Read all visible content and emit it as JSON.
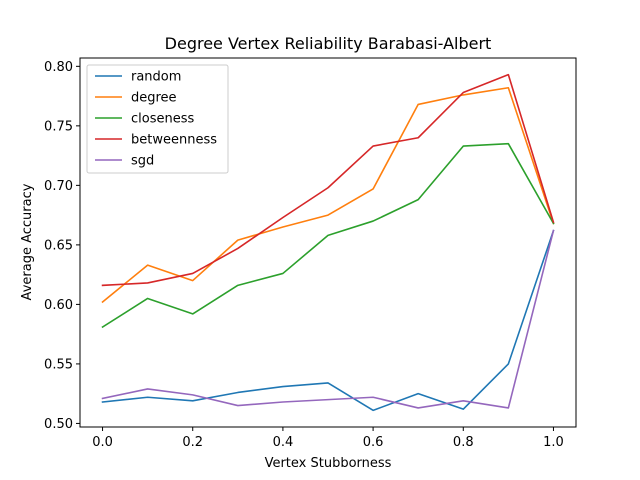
{
  "chart_data": {
    "type": "line",
    "title": "Degree Vertex Reliability Barabasi-Albert",
    "xlabel": "Vertex Stubborness",
    "ylabel": "Average Accuracy",
    "x": [
      0.0,
      0.1,
      0.2,
      0.3,
      0.4,
      0.5,
      0.6,
      0.7,
      0.8,
      0.9,
      1.0
    ],
    "xlim": [
      -0.05,
      1.05
    ],
    "ylim": [
      0.497,
      0.807
    ],
    "xticks": [
      "0.0",
      "0.2",
      "0.4",
      "0.6",
      "0.8",
      "1.0"
    ],
    "yticks": [
      "0.50",
      "0.55",
      "0.60",
      "0.65",
      "0.70",
      "0.75",
      "0.80"
    ],
    "grid": false,
    "legend_position": "top-left",
    "series": [
      {
        "name": "random",
        "color": "#1f77b4",
        "values": [
          0.518,
          0.522,
          0.519,
          0.526,
          0.531,
          0.534,
          0.511,
          0.525,
          0.512,
          0.55,
          0.662
        ]
      },
      {
        "name": "degree",
        "color": "#ff7f0e",
        "values": [
          0.602,
          0.633,
          0.62,
          0.654,
          0.665,
          0.675,
          0.697,
          0.768,
          0.776,
          0.782,
          0.668
        ]
      },
      {
        "name": "closeness",
        "color": "#2ca02c",
        "values": [
          0.581,
          0.605,
          0.592,
          0.616,
          0.626,
          0.658,
          0.67,
          0.688,
          0.733,
          0.735,
          0.668
        ]
      },
      {
        "name": "betweenness",
        "color": "#d62728",
        "values": [
          0.616,
          0.618,
          0.626,
          0.647,
          0.673,
          0.698,
          0.733,
          0.74,
          0.778,
          0.793,
          0.669
        ]
      },
      {
        "name": "sgd",
        "color": "#9467bd",
        "values": [
          0.521,
          0.529,
          0.524,
          0.515,
          0.518,
          0.52,
          0.522,
          0.513,
          0.519,
          0.513,
          0.662
        ]
      }
    ]
  }
}
